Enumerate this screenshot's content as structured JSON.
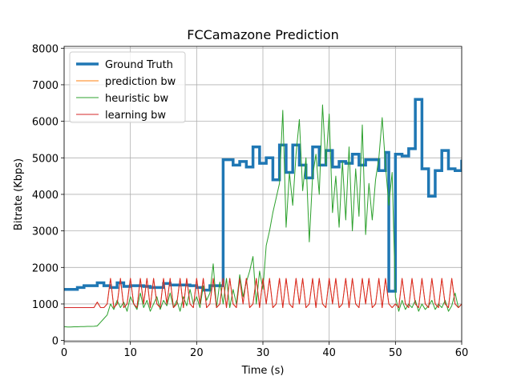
{
  "chart_data": {
    "type": "line",
    "title": "FCCamazone Prediction",
    "x_label": "Time (s)",
    "y_label": "Bitrate (Kbps)",
    "xlim": [
      0,
      60
    ],
    "xticks": [
      0,
      10,
      20,
      30,
      40,
      50,
      60
    ],
    "ylim": [
      -30,
      8050
    ],
    "yticks": [
      0,
      1000,
      2000,
      3000,
      4000,
      5000,
      6000,
      7000,
      8000
    ],
    "grid": true,
    "legend": "upper-left",
    "series": [
      {
        "name": "Ground Truth",
        "color": "#1f77b4",
        "width": 3.5,
        "steps": true,
        "x": [
          0,
          2,
          3,
          5,
          6,
          7,
          8,
          9,
          10,
          12,
          13,
          15,
          16,
          19,
          20,
          21,
          22,
          24,
          25.5,
          26.5,
          27.5,
          28.5,
          29.5,
          30.5,
          31.5,
          32.5,
          33.5,
          34.5,
          35.5,
          36.5,
          37.5,
          38.5,
          39.5,
          40.5,
          41.5,
          42.5,
          43.5,
          44.5,
          45.5,
          46.5,
          47.5,
          48.5,
          49,
          50,
          51,
          52,
          53,
          54,
          55,
          56,
          57,
          58,
          59,
          60
        ],
        "values": [
          1400,
          1450,
          1500,
          1580,
          1500,
          1450,
          1580,
          1480,
          1500,
          1480,
          1450,
          1560,
          1520,
          1500,
          1450,
          1380,
          1500,
          4950,
          4800,
          4900,
          4750,
          5300,
          4850,
          5000,
          4400,
          5350,
          4600,
          5350,
          4800,
          4450,
          5300,
          4800,
          5200,
          4750,
          4900,
          4850,
          5100,
          4800,
          4950,
          4950,
          4650,
          5150,
          1350,
          5100,
          5050,
          5250,
          6600,
          4700,
          3950,
          4650,
          5200,
          4700,
          4650,
          4950
        ]
      },
      {
        "name": "prediction bw",
        "color": "#ff7f0e",
        "width": 1,
        "x": [
          0,
          0.5,
          1,
          1.5,
          2,
          2.5,
          3,
          3.5,
          4,
          4.5,
          5,
          5.5,
          6,
          6.5,
          7,
          7.5,
          8,
          8.5,
          9,
          9.5,
          10,
          10.5,
          11,
          11.5,
          12,
          12.5,
          13,
          13.5,
          14,
          14.5,
          15,
          15.5,
          16,
          16.5,
          17,
          17.5,
          18,
          18.5,
          19,
          19.5,
          20,
          20.5,
          21,
          21.5,
          22,
          22.5,
          23,
          23.5,
          24,
          24.5,
          25,
          25.5,
          26,
          26.5,
          27,
          27.5,
          28,
          28.5,
          29,
          29.5,
          30,
          30.5,
          31,
          31.5,
          32,
          32.5,
          33,
          33.5,
          34,
          34.5,
          35,
          35.5,
          36,
          36.5,
          37,
          37.5,
          38,
          38.5,
          39,
          39.5,
          40,
          40.5,
          41,
          41.5,
          42,
          42.5,
          43,
          43.5,
          44,
          44.5,
          45,
          45.5,
          46,
          46.5,
          47,
          47.5,
          48,
          48.5,
          49,
          49.5,
          50,
          50.5,
          51,
          51.5,
          52,
          52.5,
          53,
          53.5,
          54,
          54.5,
          55,
          55.5,
          56,
          56.5,
          57,
          57.5,
          58,
          58.5,
          59,
          59.5,
          60
        ],
        "values": [
          900,
          900,
          900,
          900,
          900,
          900,
          900,
          900,
          900,
          900,
          1050,
          900,
          900,
          1000,
          1700,
          900,
          1000,
          1700,
          900,
          1000,
          1700,
          1000,
          900,
          1700,
          1000,
          1700,
          900,
          1700,
          1000,
          900,
          1700,
          1000,
          1700,
          900,
          1000,
          1700,
          900,
          1700,
          1000,
          900,
          1700,
          1000,
          1700,
          900,
          1000,
          1700,
          900,
          1000,
          1700,
          900,
          1700,
          1000,
          900,
          1700,
          1000,
          1700,
          900,
          1000,
          1700,
          900,
          1700,
          1000,
          1700,
          900,
          1000,
          1700,
          900,
          1700,
          1000,
          900,
          1700,
          1000,
          1700,
          900,
          1000,
          1700,
          900,
          1700,
          1000,
          900,
          1700,
          1000,
          1700,
          900,
          1000,
          1700,
          900,
          1700,
          1000,
          900,
          1700,
          1000,
          1700,
          900,
          1000,
          1700,
          900,
          1700,
          1000,
          900,
          1000,
          900,
          1700,
          1000,
          900,
          1700,
          1000,
          900,
          1700,
          1000,
          900,
          1700,
          1000,
          900,
          1700,
          1000,
          900,
          1700,
          1000,
          900,
          1000
        ]
      },
      {
        "name": "heuristic bw",
        "color": "#2ca02c",
        "width": 1,
        "x": [
          0,
          0.5,
          1,
          1.5,
          2,
          2.5,
          3,
          3.5,
          4,
          4.5,
          5,
          5.5,
          6,
          6.5,
          7,
          7.5,
          8,
          8.5,
          9,
          9.5,
          10,
          10.5,
          11,
          11.5,
          12,
          12.5,
          13,
          13.5,
          14,
          14.5,
          15,
          15.5,
          16,
          16.5,
          17,
          17.5,
          18,
          18.5,
          19,
          19.5,
          20,
          20.5,
          21,
          21.5,
          22,
          22.5,
          23,
          23.5,
          24,
          24.5,
          25,
          25.5,
          26,
          26.5,
          27,
          27.5,
          28,
          28.5,
          29,
          29.5,
          30,
          30.5,
          31,
          31.5,
          32,
          32.5,
          33,
          33.5,
          34,
          34.5,
          35,
          35.5,
          36,
          36.5,
          37,
          37.5,
          38,
          38.5,
          39,
          39.5,
          40,
          40.5,
          41,
          41.5,
          42,
          42.5,
          43,
          43.5,
          44,
          44.5,
          45,
          45.5,
          46,
          46.5,
          47,
          47.5,
          48,
          48.5,
          49,
          49.5,
          50,
          50.5,
          51,
          51.5,
          52,
          52.5,
          53,
          53.5,
          54,
          54.5,
          55,
          55.5,
          56,
          56.5,
          57,
          57.5,
          58,
          58.5,
          59,
          59.5,
          60
        ],
        "values": [
          380,
          370,
          370,
          375,
          375,
          380,
          380,
          385,
          385,
          390,
          400,
          500,
          600,
          700,
          1000,
          850,
          1100,
          900,
          1050,
          800,
          1200,
          1000,
          850,
          1300,
          900,
          1100,
          800,
          1000,
          1200,
          850,
          1100,
          950,
          1300,
          900,
          1100,
          800,
          1200,
          950,
          1400,
          1000,
          1200,
          900,
          1500,
          1100,
          1300,
          2100,
          900,
          1600,
          1000,
          1700,
          900,
          1400,
          1000,
          1800,
          1200,
          1600,
          1900,
          2300,
          1000,
          1900,
          1400,
          2600,
          3000,
          3500,
          3900,
          4300,
          6300,
          3100,
          4600,
          3700,
          5100,
          6050,
          4100,
          5000,
          2700,
          4500,
          5100,
          4000,
          6450,
          4800,
          6200,
          3500,
          4500,
          3100,
          4900,
          3300,
          5300,
          3000,
          4700,
          3400,
          5900,
          2900,
          4300,
          3300,
          4400,
          5000,
          6100,
          4800,
          3700,
          4600,
          1200,
          800,
          1100,
          850,
          1000,
          900,
          1100,
          800,
          1000,
          850,
          950,
          1100,
          850,
          1000,
          900,
          1100,
          800,
          950,
          1300,
          900,
          1000
        ]
      },
      {
        "name": "learning bw",
        "color": "#d62728",
        "width": 1,
        "x": [
          0,
          0.5,
          1,
          1.5,
          2,
          2.5,
          3,
          3.5,
          4,
          4.5,
          5,
          5.5,
          6,
          6.5,
          7,
          7.5,
          8,
          8.5,
          9,
          9.5,
          10,
          10.5,
          11,
          11.5,
          12,
          12.5,
          13,
          13.5,
          14,
          14.5,
          15,
          15.5,
          16,
          16.5,
          17,
          17.5,
          18,
          18.5,
          19,
          19.5,
          20,
          20.5,
          21,
          21.5,
          22,
          22.5,
          23,
          23.5,
          24,
          24.5,
          25,
          25.5,
          26,
          26.5,
          27,
          27.5,
          28,
          28.5,
          29,
          29.5,
          30,
          30.5,
          31,
          31.5,
          32,
          32.5,
          33,
          33.5,
          34,
          34.5,
          35,
          35.5,
          36,
          36.5,
          37,
          37.5,
          38,
          38.5,
          39,
          39.5,
          40,
          40.5,
          41,
          41.5,
          42,
          42.5,
          43,
          43.5,
          44,
          44.5,
          45,
          45.5,
          46,
          46.5,
          47,
          47.5,
          48,
          48.5,
          49,
          49.5,
          50,
          50.5,
          51,
          51.5,
          52,
          52.5,
          53,
          53.5,
          54,
          54.5,
          55,
          55.5,
          56,
          56.5,
          57,
          57.5,
          58,
          58.5,
          59,
          59.5,
          60
        ],
        "values": [
          900,
          900,
          900,
          900,
          900,
          900,
          900,
          900,
          900,
          900,
          1050,
          900,
          900,
          1000,
          1700,
          900,
          1000,
          1700,
          900,
          1000,
          1700,
          1000,
          900,
          1700,
          1000,
          1700,
          900,
          1700,
          1000,
          900,
          1700,
          1000,
          1700,
          900,
          1000,
          1700,
          900,
          1700,
          1000,
          900,
          1700,
          1000,
          1700,
          900,
          1000,
          1700,
          900,
          1000,
          1700,
          900,
          1700,
          1000,
          900,
          1700,
          1000,
          1700,
          900,
          1000,
          1700,
          900,
          1700,
          1000,
          1700,
          900,
          1000,
          1700,
          900,
          1700,
          1000,
          900,
          1700,
          1000,
          1700,
          900,
          1000,
          1700,
          900,
          1700,
          1000,
          900,
          1700,
          1000,
          1700,
          900,
          1000,
          1700,
          900,
          1700,
          1000,
          900,
          1700,
          1000,
          1700,
          900,
          1000,
          1700,
          900,
          1700,
          1000,
          900,
          1000,
          900,
          1700,
          1000,
          900,
          1700,
          1000,
          900,
          1700,
          1000,
          900,
          1700,
          1000,
          900,
          1700,
          1000,
          900,
          1700,
          1000,
          900,
          1000
        ]
      }
    ]
  }
}
